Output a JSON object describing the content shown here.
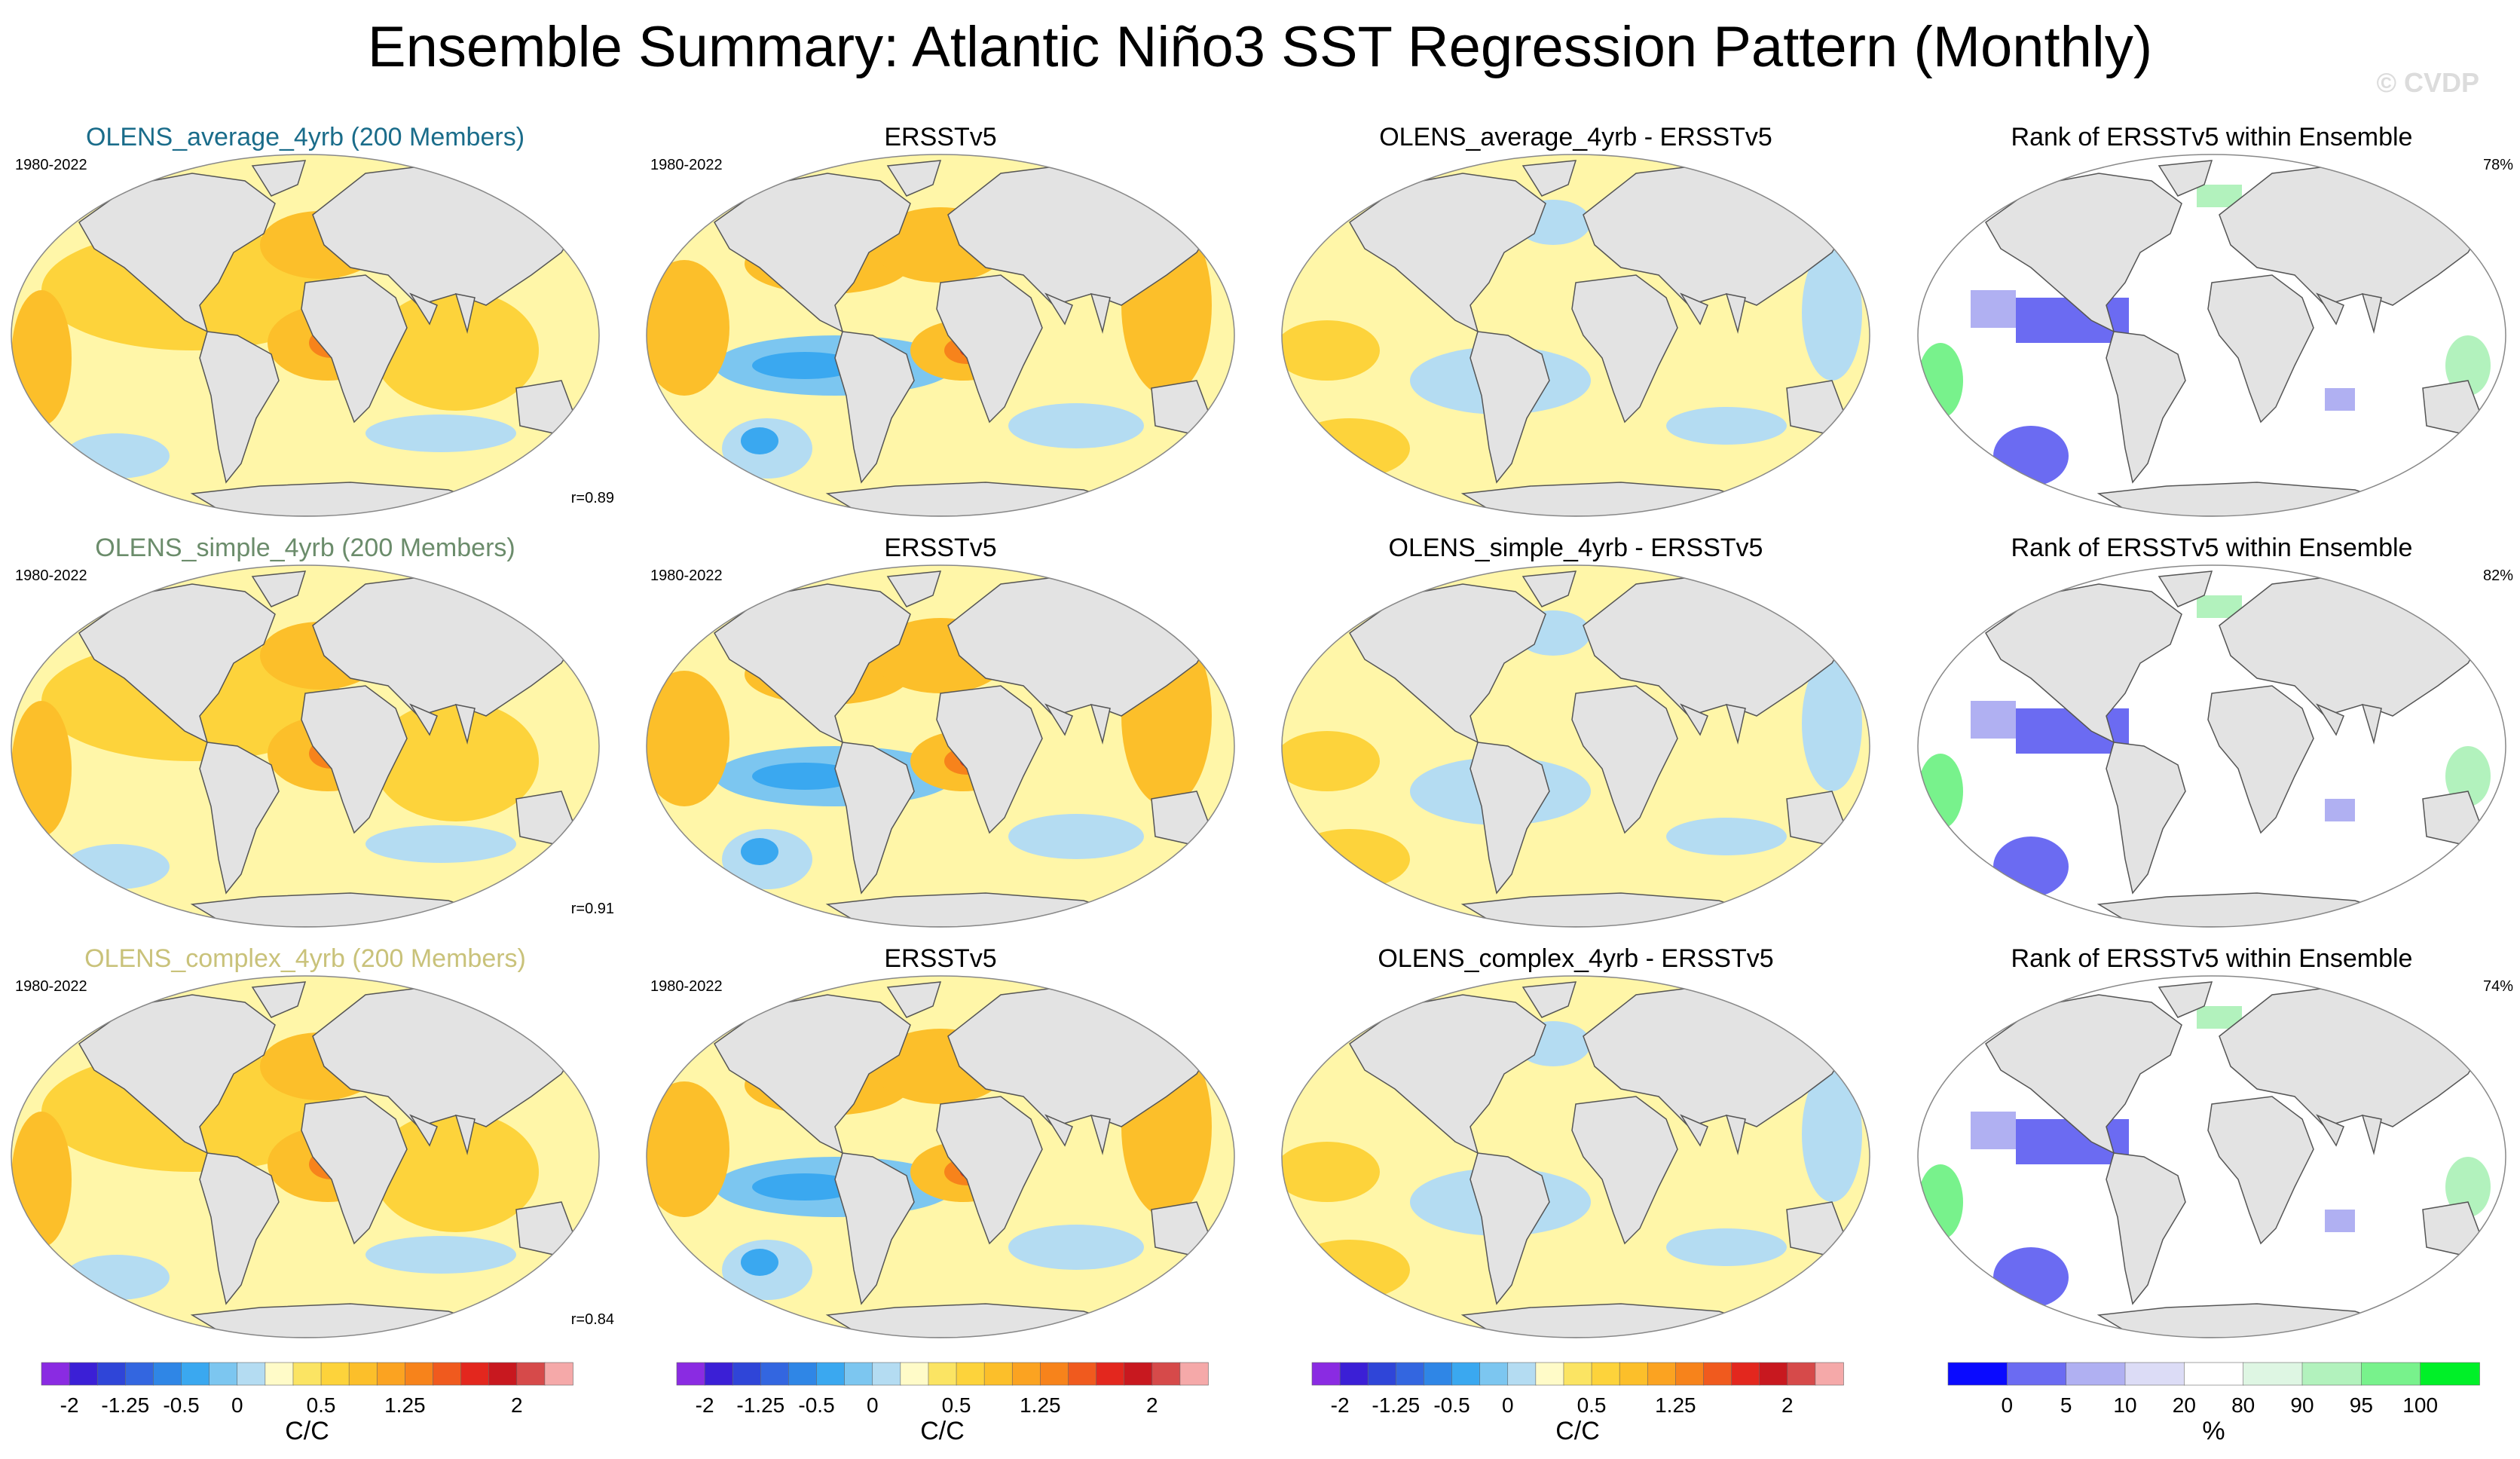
{
  "title": "Ensemble Summary: Atlantic Niño3 SST Regression Pattern (Monthly)",
  "watermark": "© CVDP",
  "colors": {
    "land": "#e3e3e3",
    "coast": "#555555",
    "ocean_base": "#fff6a8",
    "rank_base": "#ffffff",
    "title_average": "#1a6c8a",
    "title_simple": "#6b8c6b",
    "title_complex": "#c9c27a"
  },
  "chart_data": [
    {
      "type": "heatmap",
      "row": 1,
      "models": [
        "OLENS_average_4yrb (200 Members)",
        "ERSSTv5",
        "OLENS_average_4yrb - ERSSTv5",
        "Rank of ERSSTv5 within Ensemble"
      ],
      "period": "1980-2022",
      "pattern_correlation": "r=0.89",
      "rank_percent": "78%"
    },
    {
      "type": "heatmap",
      "row": 2,
      "models": [
        "OLENS_simple_4yrb (200 Members)",
        "ERSSTv5",
        "OLENS_simple_4yrb - ERSSTv5",
        "Rank of ERSSTv5 within Ensemble"
      ],
      "period": "1980-2022",
      "pattern_correlation": "r=0.91",
      "rank_percent": "82%"
    },
    {
      "type": "heatmap",
      "row": 3,
      "models": [
        "OLENS_complex_4yrb (200 Members)",
        "ERSSTv5",
        "OLENS_complex_4yrb - ERSSTv5",
        "Rank of ERSSTv5 within Ensemble"
      ],
      "period": "1980-2022",
      "pattern_correlation": "r=0.84",
      "rank_percent": "74%"
    }
  ],
  "colorbar_sst": {
    "unit": "C/C",
    "tick_labels": [
      "-2",
      "-1.25",
      "-0.5",
      "0",
      "0.5",
      "1.25",
      "2"
    ],
    "colors": [
      "#8a2be2",
      "#3b1fd6",
      "#2f45d8",
      "#3366e0",
      "#2f86e6",
      "#3aa8f0",
      "#7cc6f0",
      "#b4dcf2",
      "#fffbc8",
      "#fbe463",
      "#fdd33b",
      "#fcbf2a",
      "#fba321",
      "#f7831b",
      "#f05a1e",
      "#e3271e",
      "#c8181f",
      "#d64a4a",
      "#f5a9a9"
    ],
    "tick_index": [
      1,
      3,
      5,
      7,
      10,
      13,
      17
    ]
  },
  "colorbar_rank": {
    "unit": "%",
    "tick_labels": [
      "0",
      "5",
      "10",
      "20",
      "80",
      "90",
      "95",
      "100"
    ],
    "colors": [
      "#0a0aff",
      "#6b6bf2",
      "#b0b0f2",
      "#dcdcf6",
      "#ffffff",
      "#def6e3",
      "#b2f2bd",
      "#78f28c",
      "#00f028"
    ],
    "tick_index": [
      1,
      2,
      3,
      4,
      5,
      6,
      7,
      8
    ]
  }
}
